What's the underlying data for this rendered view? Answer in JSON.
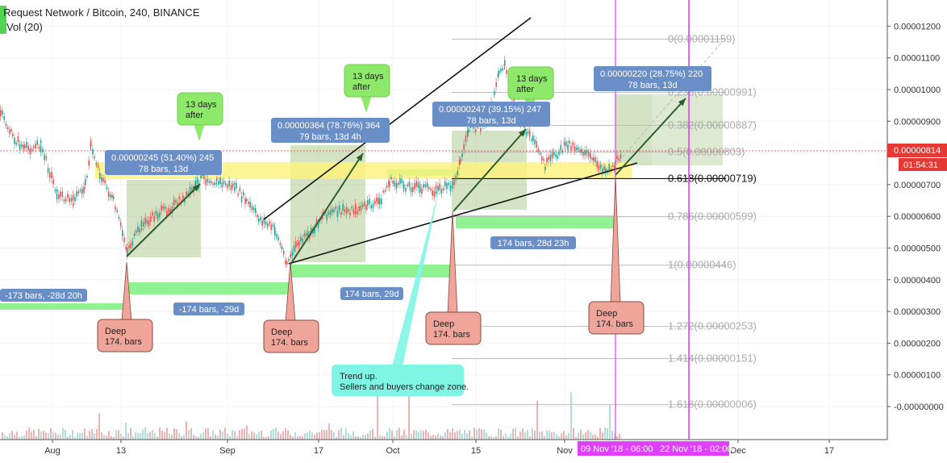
{
  "header": {
    "title": "Request Network / Bitcoin, 240, BINANCE",
    "volume": "Vol (20)"
  },
  "colors": {
    "up": "#26a69a",
    "down": "#ef5350",
    "green_zone": "#7ef07e",
    "yellow_zone": "#fff27a",
    "callout_green": "#8ee86a",
    "callout_blue": "#6a8fc7",
    "callout_red": "#f0a59a",
    "callout_cyan": "#7ff5e6",
    "magenta": "#e040fb",
    "price_label": "#e53935"
  },
  "chart_data": {
    "type": "candlestick",
    "symbol": "Request Network / Bitcoin",
    "interval": "240",
    "exchange": "BINANCE",
    "y_axis_ticks": [
      "0.00001200",
      "0.00001100",
      "0.00001000",
      "0.00000900",
      "0.00000800",
      "0.00000700",
      "0.00000600",
      "0.00000500",
      "0.00000400",
      "0.00000300",
      "0.00000200",
      "0.00000100",
      "-0.00000000"
    ],
    "x_axis_ticks": [
      "Aug",
      "13",
      "Sep",
      "17",
      "Oct",
      "15",
      "Nov",
      "Dec",
      "17"
    ],
    "last_price": "0.00000814",
    "countdown": "01:54:31",
    "fib_levels": [
      {
        "label": "0(0.00001159)",
        "value": 1.159e-05
      },
      {
        "label": "0.236(0.00000991)",
        "value": 9.91e-06
      },
      {
        "label": "0.382(0.00000887)",
        "value": 8.87e-06
      },
      {
        "label": "0.5(0.00000803)",
        "value": 8.03e-06
      },
      {
        "label": "0.618(0.00000719)",
        "value": 7.19e-06
      },
      {
        "label": "0.786(0.00000599)",
        "value": 5.99e-06
      },
      {
        "label": "1(0.00000446)",
        "value": 4.46e-06
      },
      {
        "label": "1.272(0.00000253)",
        "value": 2.53e-06
      },
      {
        "label": "1.414(0.00000151)",
        "value": 1.51e-06
      },
      {
        "label": "1.618(0.00000006)",
        "value": 6e-08
      }
    ],
    "date_labels": [
      "09 Nov '18 - 06:00",
      "22 Nov '18 - 02:00"
    ],
    "measure_boxes": [
      {
        "line1": "0.00000245 (51.40%) 245",
        "line2": "78 bars, 13d"
      },
      {
        "line1": "0.00000364 (78.76%) 364",
        "line2": "79 bars, 13d 4h"
      },
      {
        "line1": "0.00000247 (39.15%) 247",
        "line2": "78 bars, 13d"
      },
      {
        "line1": "0.00000220 (28.75%) 220",
        "line2": "78 bars, 13d"
      }
    ],
    "bar_counts": [
      "-173 bars, -28d 20h",
      "-174 bars, -29d",
      "174 bars, 29d",
      "174 bars, 28d 23h"
    ],
    "callouts_days": [
      "13 days after",
      "13 days after",
      "13 days after"
    ],
    "callouts_deep": [
      "Deep 174. bars",
      "Deep 174. bars",
      "Deep 174. bars",
      "Deep 174. bars"
    ],
    "note": "Trend up. Sellers and buyers change zone."
  }
}
